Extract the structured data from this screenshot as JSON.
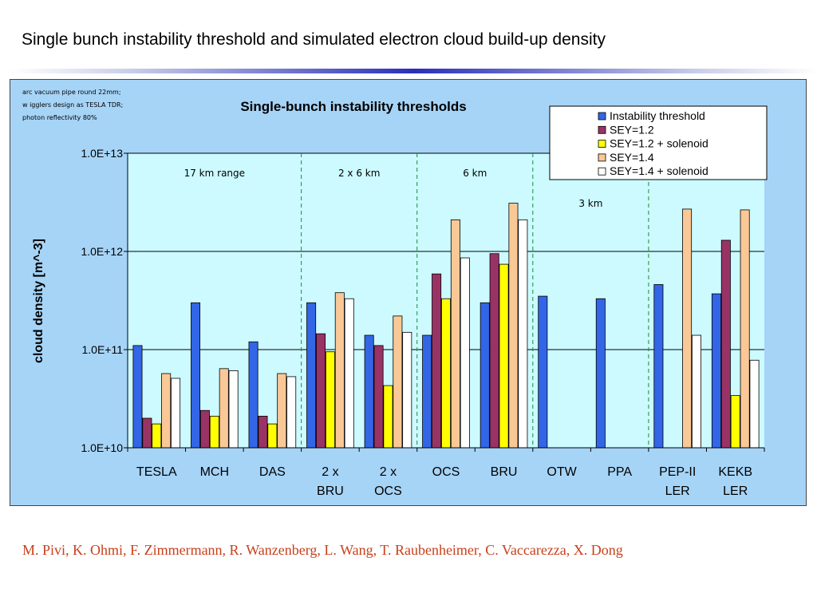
{
  "slide": {
    "title": "Single bunch instability threshold and simulated electron cloud build-up density",
    "authors": "M. Pivi, K. Ohmi, F. Zimmermann, R. Wanzenberg, L. Wang, T. Raubenheimer, C. Vaccarezza, X. Dong"
  },
  "chart_data": {
    "type": "bar",
    "title": "Single-bunch instability thresholds",
    "ylabel": "cloud density [m^-3]",
    "xlabel": "",
    "yscale": "log",
    "ylim": [
      10000000000.0,
      10000000000000.0
    ],
    "yticks": [
      "1.0E+10",
      "1.0E+11",
      "1.0E+12",
      "1.0E+13"
    ],
    "grid": "horizontal major lines",
    "legend_position": "top-right",
    "note_lines": [
      "arc vacuum pipe round 22mm;",
      "w igglers design as TESLA TDR;",
      "photon reflectivity 80%"
    ],
    "region_labels": [
      "17 km range",
      "2 x 6 km",
      "6 km",
      "3 km"
    ],
    "categories": [
      [
        "TESLA"
      ],
      [
        "MCH"
      ],
      [
        "DAS"
      ],
      [
        "2 x",
        "BRU"
      ],
      [
        "2 x",
        "OCS"
      ],
      [
        "OCS"
      ],
      [
        "BRU"
      ],
      [
        "OTW"
      ],
      [
        "PPA"
      ],
      [
        "PEP-II",
        "LER"
      ],
      [
        "KEKB",
        "LER"
      ]
    ],
    "series": [
      {
        "name": "Instability threshold",
        "color": "#3366e6",
        "values": [
          110000000000.0,
          300000000000.0,
          120000000000.0,
          300000000000.0,
          140000000000.0,
          140000000000.0,
          300000000000.0,
          350000000000.0,
          330000000000.0,
          460000000000.0,
          370000000000.0
        ]
      },
      {
        "name": "SEY=1.2",
        "color": "#993366",
        "values": [
          20000000000.0,
          24000000000.0,
          21000000000.0,
          145000000000.0,
          110000000000.0,
          590000000000.0,
          950000000000.0,
          null,
          null,
          null,
          1300000000000.0
        ]
      },
      {
        "name": "SEY=1.2 + solenoid",
        "color": "#ffff00",
        "values": [
          17500000000.0,
          21000000000.0,
          17500000000.0,
          95000000000.0,
          43000000000.0,
          330000000000.0,
          740000000000.0,
          null,
          null,
          null,
          34000000000.0
        ]
      },
      {
        "name": "SEY=1.4",
        "color": "#fac896",
        "values": [
          57000000000.0,
          64000000000.0,
          57000000000.0,
          380000000000.0,
          220000000000.0,
          2100000000000.0,
          3100000000000.0,
          null,
          null,
          2700000000000.0,
          2650000000000.0
        ]
      },
      {
        "name": "SEY=1.4 + solenoid",
        "color": "#ffffff",
        "values": [
          51000000000.0,
          61000000000.0,
          53000000000.0,
          330000000000.0,
          150000000000.0,
          860000000000.0,
          2100000000000.0,
          null,
          null,
          140000000000.0,
          78000000000.0
        ]
      }
    ]
  }
}
